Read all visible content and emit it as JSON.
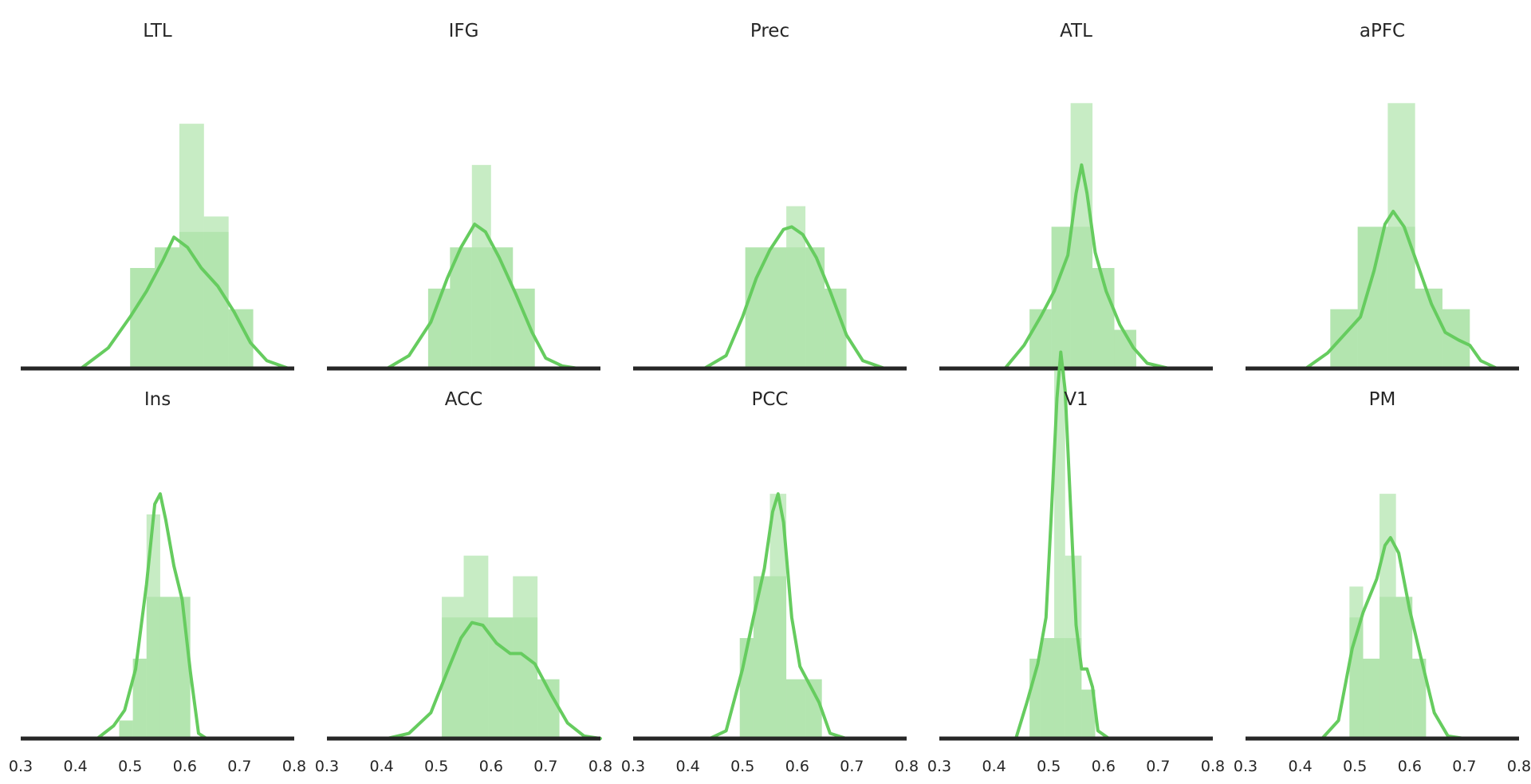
{
  "colors": {
    "hist_fill": "#6dcc64",
    "kde_line": "#66cc5f",
    "baseline": "#262626",
    "text": "#262626",
    "background": "#ffffff"
  },
  "chart_data": [
    {
      "type": "bar+line",
      "title": "LTL",
      "xlim": [
        0.3,
        0.8
      ],
      "xticks": [
        "0.3",
        "0.4",
        "0.5",
        "0.6",
        "0.7",
        "0.8"
      ],
      "hist": {
        "edges": [
          0.5,
          0.545,
          0.59,
          0.635,
          0.68,
          0.725
        ],
        "heights": [
          0.39,
          0.47,
          0.95,
          0.59,
          0.23
        ],
        "overlay_heights": [
          0.39,
          0.47,
          0.53,
          0.53,
          0.23
        ]
      },
      "kde": {
        "x": [
          0.41,
          0.46,
          0.5,
          0.53,
          0.56,
          0.58,
          0.605,
          0.63,
          0.66,
          0.69,
          0.72,
          0.75,
          0.79
        ],
        "y": [
          0,
          0.08,
          0.2,
          0.3,
          0.42,
          0.51,
          0.47,
          0.39,
          0.32,
          0.22,
          0.1,
          0.03,
          0
        ]
      }
    },
    {
      "type": "bar+line",
      "title": "IFG",
      "xlim": [
        0.3,
        0.8
      ],
      "xticks": [
        "0.3",
        "0.4",
        "0.5",
        "0.6",
        "0.7",
        "0.8"
      ],
      "hist": {
        "edges": [
          0.485,
          0.525,
          0.565,
          0.6,
          0.64,
          0.68
        ],
        "heights": [
          0.31,
          0.47,
          0.79,
          0.47,
          0.31
        ],
        "overlay_heights": [
          0.31,
          0.47,
          0.47,
          0.47,
          0.31
        ]
      },
      "kde": {
        "x": [
          0.41,
          0.45,
          0.49,
          0.52,
          0.545,
          0.57,
          0.59,
          0.615,
          0.645,
          0.675,
          0.7,
          0.73,
          0.76
        ],
        "y": [
          0,
          0.05,
          0.18,
          0.35,
          0.47,
          0.56,
          0.53,
          0.43,
          0.29,
          0.14,
          0.04,
          0.01,
          0
        ]
      }
    },
    {
      "type": "bar+line",
      "title": "Prec",
      "xlim": [
        0.3,
        0.8
      ],
      "xticks": [
        "0.3",
        "0.4",
        "0.5",
        "0.6",
        "0.7",
        "0.8"
      ],
      "hist": {
        "edges": [
          0.505,
          0.545,
          0.58,
          0.615,
          0.65,
          0.69
        ],
        "heights": [
          0.47,
          0.47,
          0.63,
          0.47,
          0.31
        ],
        "overlay_heights": [
          0.47,
          0.47,
          0.47,
          0.47,
          0.31
        ]
      },
      "kde": {
        "x": [
          0.43,
          0.47,
          0.5,
          0.525,
          0.55,
          0.575,
          0.59,
          0.61,
          0.635,
          0.66,
          0.69,
          0.72,
          0.76
        ],
        "y": [
          0,
          0.05,
          0.2,
          0.35,
          0.46,
          0.54,
          0.55,
          0.52,
          0.43,
          0.3,
          0.13,
          0.03,
          0
        ]
      }
    },
    {
      "type": "bar+line",
      "title": "ATL",
      "xlim": [
        0.3,
        0.8
      ],
      "xticks": [
        "0.3",
        "0.4",
        "0.5",
        "0.6",
        "0.7",
        "0.8"
      ],
      "hist": {
        "edges": [
          0.465,
          0.505,
          0.54,
          0.58,
          0.62,
          0.66
        ],
        "heights": [
          0.23,
          0.55,
          1.03,
          0.39,
          0.15
        ],
        "overlay_heights": [
          0.23,
          0.55,
          0.55,
          0.39,
          0.15
        ]
      },
      "kde": {
        "x": [
          0.42,
          0.455,
          0.485,
          0.51,
          0.535,
          0.55,
          0.56,
          0.57,
          0.585,
          0.605,
          0.63,
          0.655,
          0.68,
          0.72
        ],
        "y": [
          0,
          0.09,
          0.2,
          0.3,
          0.44,
          0.68,
          0.79,
          0.68,
          0.45,
          0.3,
          0.17,
          0.08,
          0.02,
          0
        ]
      }
    },
    {
      "type": "bar+line",
      "title": "aPFC",
      "xlim": [
        0.3,
        0.8
      ],
      "xticks": [
        "0.3",
        "0.4",
        "0.5",
        "0.6",
        "0.7",
        "0.8"
      ],
      "hist": {
        "edges": [
          0.455,
          0.505,
          0.56,
          0.61,
          0.66,
          0.71
        ],
        "heights": [
          0.23,
          0.55,
          1.03,
          0.31,
          0.23
        ],
        "overlay_heights": [
          0.23,
          0.55,
          0.55,
          0.31,
          0.23
        ]
      },
      "kde": {
        "x": [
          0.41,
          0.45,
          0.48,
          0.51,
          0.535,
          0.555,
          0.57,
          0.59,
          0.615,
          0.64,
          0.665,
          0.69,
          0.71,
          0.73,
          0.76
        ],
        "y": [
          0,
          0.06,
          0.13,
          0.2,
          0.38,
          0.56,
          0.61,
          0.55,
          0.4,
          0.25,
          0.14,
          0.11,
          0.09,
          0.03,
          0
        ]
      }
    },
    {
      "type": "bar+line",
      "title": "Ins",
      "xlim": [
        0.3,
        0.8
      ],
      "xticks": [
        "0.3",
        "0.4",
        "0.5",
        "0.6",
        "0.7",
        "0.8"
      ],
      "hist": {
        "edges": [
          0.48,
          0.505,
          0.53,
          0.555,
          0.58,
          0.61
        ],
        "heights": [
          0.07,
          0.31,
          0.87,
          0.55,
          0.55
        ],
        "overlay_heights": [
          0.07,
          0.31,
          0.55,
          0.55,
          0.55
        ]
      },
      "kde": {
        "x": [
          0.44,
          0.47,
          0.49,
          0.51,
          0.53,
          0.545,
          0.555,
          0.565,
          0.58,
          0.595,
          0.61,
          0.625,
          0.64
        ],
        "y": [
          0,
          0.05,
          0.11,
          0.27,
          0.6,
          0.91,
          0.95,
          0.85,
          0.67,
          0.54,
          0.26,
          0.02,
          0
        ]
      }
    },
    {
      "type": "bar+line",
      "title": "ACC",
      "xlim": [
        0.3,
        0.8
      ],
      "xticks": [
        "0.3",
        "0.4",
        "0.5",
        "0.6",
        "0.7",
        "0.8"
      ],
      "hist": {
        "edges": [
          0.51,
          0.55,
          0.595,
          0.64,
          0.685,
          0.725
        ],
        "heights": [
          0.55,
          0.71,
          0.47,
          0.63,
          0.23
        ],
        "overlay_heights": [
          0.47,
          0.47,
          0.47,
          0.47,
          0.23
        ]
      },
      "kde": {
        "x": [
          0.41,
          0.45,
          0.49,
          0.52,
          0.545,
          0.565,
          0.585,
          0.61,
          0.635,
          0.655,
          0.68,
          0.71,
          0.74,
          0.77,
          0.8
        ],
        "y": [
          0,
          0.02,
          0.1,
          0.26,
          0.39,
          0.45,
          0.44,
          0.37,
          0.33,
          0.33,
          0.29,
          0.17,
          0.06,
          0.01,
          0
        ]
      }
    },
    {
      "type": "bar+line",
      "title": "PCC",
      "xlim": [
        0.3,
        0.8
      ],
      "xticks": [
        "0.3",
        "0.4",
        "0.5",
        "0.6",
        "0.7",
        "0.8"
      ],
      "hist": {
        "edges": [
          0.495,
          0.52,
          0.55,
          0.58,
          0.615,
          0.645
        ],
        "heights": [
          0.39,
          0.63,
          0.95,
          0.23,
          0.23
        ],
        "overlay_heights": [
          0.39,
          0.63,
          0.63,
          0.23,
          0.23
        ]
      },
      "kde": {
        "x": [
          0.44,
          0.47,
          0.5,
          0.52,
          0.54,
          0.555,
          0.565,
          0.575,
          0.59,
          0.605,
          0.62,
          0.64,
          0.66,
          0.69
        ],
        "y": [
          0,
          0.03,
          0.27,
          0.47,
          0.66,
          0.88,
          0.95,
          0.84,
          0.47,
          0.28,
          0.22,
          0.14,
          0.02,
          0
        ]
      }
    },
    {
      "type": "bar+line",
      "title": "V1",
      "xlim": [
        0.3,
        0.8
      ],
      "xticks": [
        "0.3",
        "0.4",
        "0.5",
        "0.6",
        "0.7",
        "0.8"
      ],
      "hist": {
        "edges": [
          0.465,
          0.485,
          0.51,
          0.53,
          0.56,
          0.585
        ],
        "heights": [
          0.31,
          0.39,
          1.43,
          0.71,
          0.19
        ],
        "overlay_heights": [
          0.31,
          0.39,
          0.39,
          0.39,
          0.19
        ]
      },
      "kde": {
        "x": [
          0.44,
          0.46,
          0.48,
          0.495,
          0.505,
          0.515,
          0.522,
          0.53,
          0.54,
          0.55,
          0.56,
          0.57,
          0.58,
          0.59,
          0.61
        ],
        "y": [
          0,
          0.14,
          0.29,
          0.47,
          0.88,
          1.32,
          1.5,
          1.35,
          0.9,
          0.44,
          0.27,
          0.27,
          0.2,
          0.03,
          0
        ]
      }
    },
    {
      "type": "bar+line",
      "title": "PM",
      "xlim": [
        0.3,
        0.8
      ],
      "xticks": [
        "0.3",
        "0.4",
        "0.5",
        "0.6",
        "0.7",
        "0.8"
      ],
      "hist": {
        "edges": [
          0.49,
          0.515,
          0.545,
          0.575,
          0.605,
          0.63
        ],
        "heights": [
          0.59,
          0.31,
          0.95,
          0.55,
          0.31
        ],
        "overlay_heights": [
          0.47,
          0.31,
          0.55,
          0.55,
          0.31
        ]
      },
      "kde": {
        "x": [
          0.44,
          0.47,
          0.495,
          0.515,
          0.54,
          0.555,
          0.565,
          0.58,
          0.6,
          0.62,
          0.645,
          0.67,
          0.7
        ],
        "y": [
          0,
          0.07,
          0.35,
          0.49,
          0.62,
          0.75,
          0.78,
          0.72,
          0.5,
          0.32,
          0.1,
          0.01,
          0
        ]
      }
    }
  ]
}
